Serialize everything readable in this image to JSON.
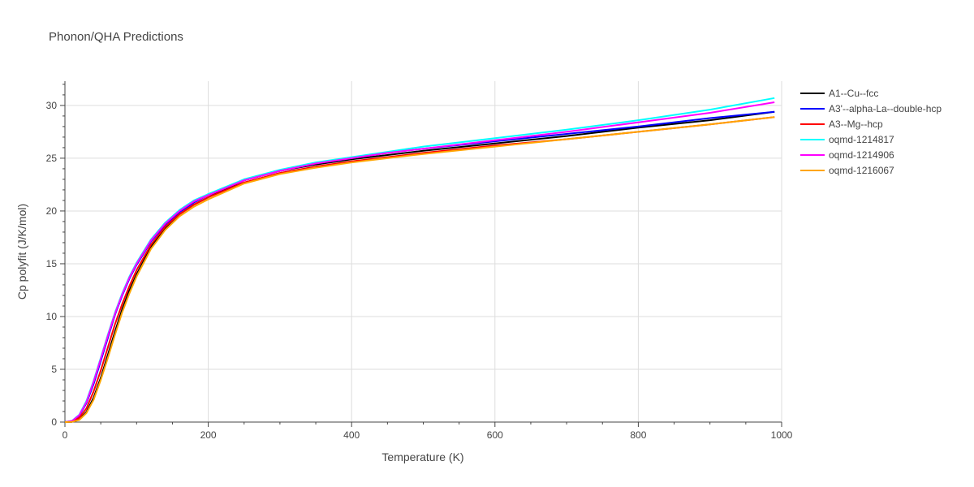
{
  "chart_data": {
    "type": "line",
    "title": "Phonon/QHA Predictions",
    "xlabel": "Temperature (K)",
    "ylabel": "Cp polyfit (J/K/mol)",
    "xlim": [
      0,
      1000
    ],
    "ylim": [
      0,
      32.3
    ],
    "xticks": [
      0,
      200,
      400,
      600,
      800,
      1000
    ],
    "yticks": [
      0,
      5,
      10,
      15,
      20,
      25,
      30
    ],
    "grid": true,
    "legend_position": "top-right",
    "x": [
      0,
      10,
      20,
      30,
      40,
      50,
      60,
      70,
      80,
      90,
      100,
      120,
      140,
      160,
      180,
      200,
      250,
      300,
      350,
      400,
      450,
      500,
      600,
      700,
      800,
      900,
      990
    ],
    "series": [
      {
        "name": "A1--Cu--fcc",
        "color": "#000000",
        "values": [
          0,
          0.02,
          0.25,
          0.95,
          2.3,
          4.2,
          6.4,
          8.6,
          10.7,
          12.5,
          14.0,
          16.6,
          18.4,
          19.7,
          20.6,
          21.3,
          22.9,
          23.8,
          24.4,
          24.9,
          25.3,
          25.7,
          26.4,
          27.1,
          27.9,
          28.6,
          29.4
        ]
      },
      {
        "name": "A3'--alpha-La--double-hcp",
        "color": "#0000ff",
        "values": [
          0,
          0.1,
          0.6,
          1.8,
          3.6,
          5.8,
          8.0,
          10.2,
          12.0,
          13.6,
          14.9,
          17.1,
          18.7,
          19.9,
          20.8,
          21.5,
          22.9,
          23.8,
          24.5,
          25.0,
          25.5,
          25.9,
          26.6,
          27.3,
          28.0,
          28.8,
          29.4
        ]
      },
      {
        "name": "A3--Mg--hcp",
        "color": "#ff0000",
        "values": [
          0,
          0.05,
          0.4,
          1.3,
          2.9,
          4.9,
          7.1,
          9.3,
          11.2,
          12.9,
          14.4,
          16.8,
          18.5,
          19.7,
          20.6,
          21.3,
          22.7,
          23.6,
          24.2,
          24.7,
          25.1,
          25.5,
          26.2,
          26.8,
          27.5,
          28.2,
          28.9
        ]
      },
      {
        "name": "oqmd-1214817",
        "color": "#00ffff",
        "values": [
          0,
          0.12,
          0.7,
          2.0,
          3.9,
          6.1,
          8.3,
          10.4,
          12.2,
          13.8,
          15.1,
          17.3,
          18.9,
          20.1,
          21.0,
          21.6,
          23.0,
          23.9,
          24.6,
          25.1,
          25.6,
          26.1,
          26.9,
          27.7,
          28.6,
          29.6,
          30.7
        ]
      },
      {
        "name": "oqmd-1214906",
        "color": "#ff00ff",
        "values": [
          0,
          0.11,
          0.65,
          1.9,
          3.8,
          6.0,
          8.2,
          10.3,
          12.1,
          13.7,
          15.0,
          17.2,
          18.8,
          20.0,
          20.9,
          21.5,
          22.9,
          23.8,
          24.5,
          25.0,
          25.5,
          25.9,
          26.7,
          27.5,
          28.4,
          29.3,
          30.3
        ]
      },
      {
        "name": "oqmd-1216067",
        "color": "#ffa500",
        "values": [
          0,
          0.02,
          0.2,
          0.85,
          2.1,
          4.0,
          6.1,
          8.3,
          10.4,
          12.2,
          13.8,
          16.4,
          18.2,
          19.5,
          20.4,
          21.1,
          22.6,
          23.5,
          24.1,
          24.6,
          25.0,
          25.4,
          26.1,
          26.8,
          27.5,
          28.2,
          28.9
        ]
      }
    ]
  }
}
